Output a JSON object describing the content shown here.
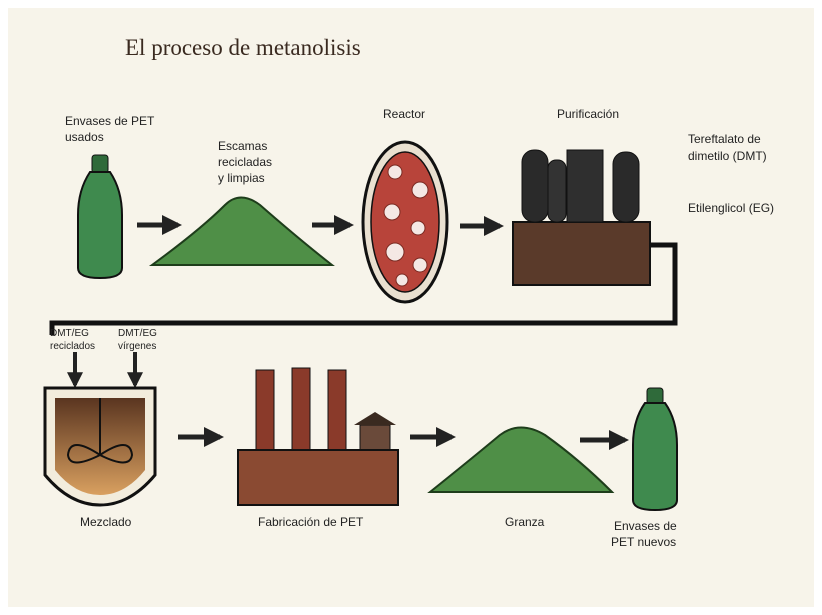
{
  "title": "El proceso de metanolisis",
  "nodes": [
    {
      "label": [
        "Envases de PET",
        "usados"
      ]
    },
    {
      "label": [
        "Escamas",
        "recicladas",
        "y limpias"
      ]
    },
    {
      "label": [
        "Reactor"
      ]
    },
    {
      "label": [
        "Purificación"
      ]
    },
    {
      "label": [
        "Tereftalato de",
        "dimetilo (DMT)"
      ]
    },
    {
      "label": [
        "Etilenglicol (EG)"
      ]
    },
    {
      "label": [
        "DMT/EG",
        "reciclados"
      ]
    },
    {
      "label": [
        "DMT/EG",
        "vírgenes"
      ]
    },
    {
      "label": [
        "Mezclado"
      ]
    },
    {
      "label": [
        "Fabricación de PET"
      ]
    },
    {
      "label": [
        "Granza"
      ]
    },
    {
      "label": [
        "Envases de",
        "PET nuevos"
      ]
    }
  ]
}
